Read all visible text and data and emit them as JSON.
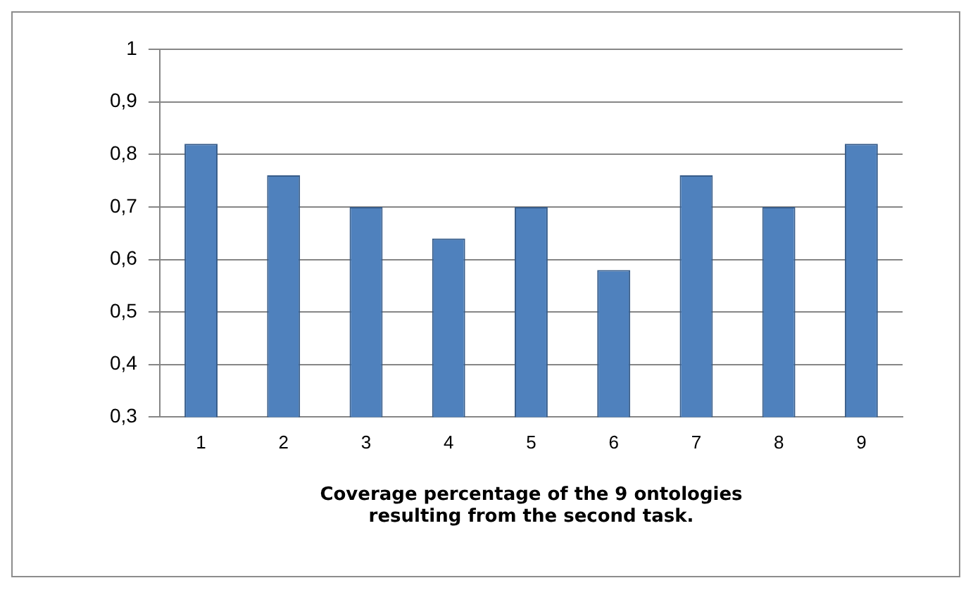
{
  "chart_data": {
    "type": "bar",
    "xlabel": "Coverage percentage of the 9 ontologies\nresulting from the second task.",
    "categories": [
      "1",
      "2",
      "3",
      "4",
      "5",
      "6",
      "7",
      "8",
      "9"
    ],
    "values": [
      0.82,
      0.76,
      0.7,
      0.64,
      0.7,
      0.58,
      0.76,
      0.7,
      0.82
    ],
    "color": "#4f81bd",
    "ylim": [
      0.3,
      1
    ],
    "yticks": [
      {
        "value": 0.3,
        "label": "0,3"
      },
      {
        "value": 0.4,
        "label": "0,4"
      },
      {
        "value": 0.5,
        "label": "0,5"
      },
      {
        "value": 0.6,
        "label": "0,6"
      },
      {
        "value": 0.7,
        "label": "0,7"
      },
      {
        "value": 0.8,
        "label": "0,8"
      },
      {
        "value": 0.9,
        "label": "0,9"
      },
      {
        "value": 1,
        "label": "1"
      }
    ],
    "grid": "y",
    "legend": false
  }
}
